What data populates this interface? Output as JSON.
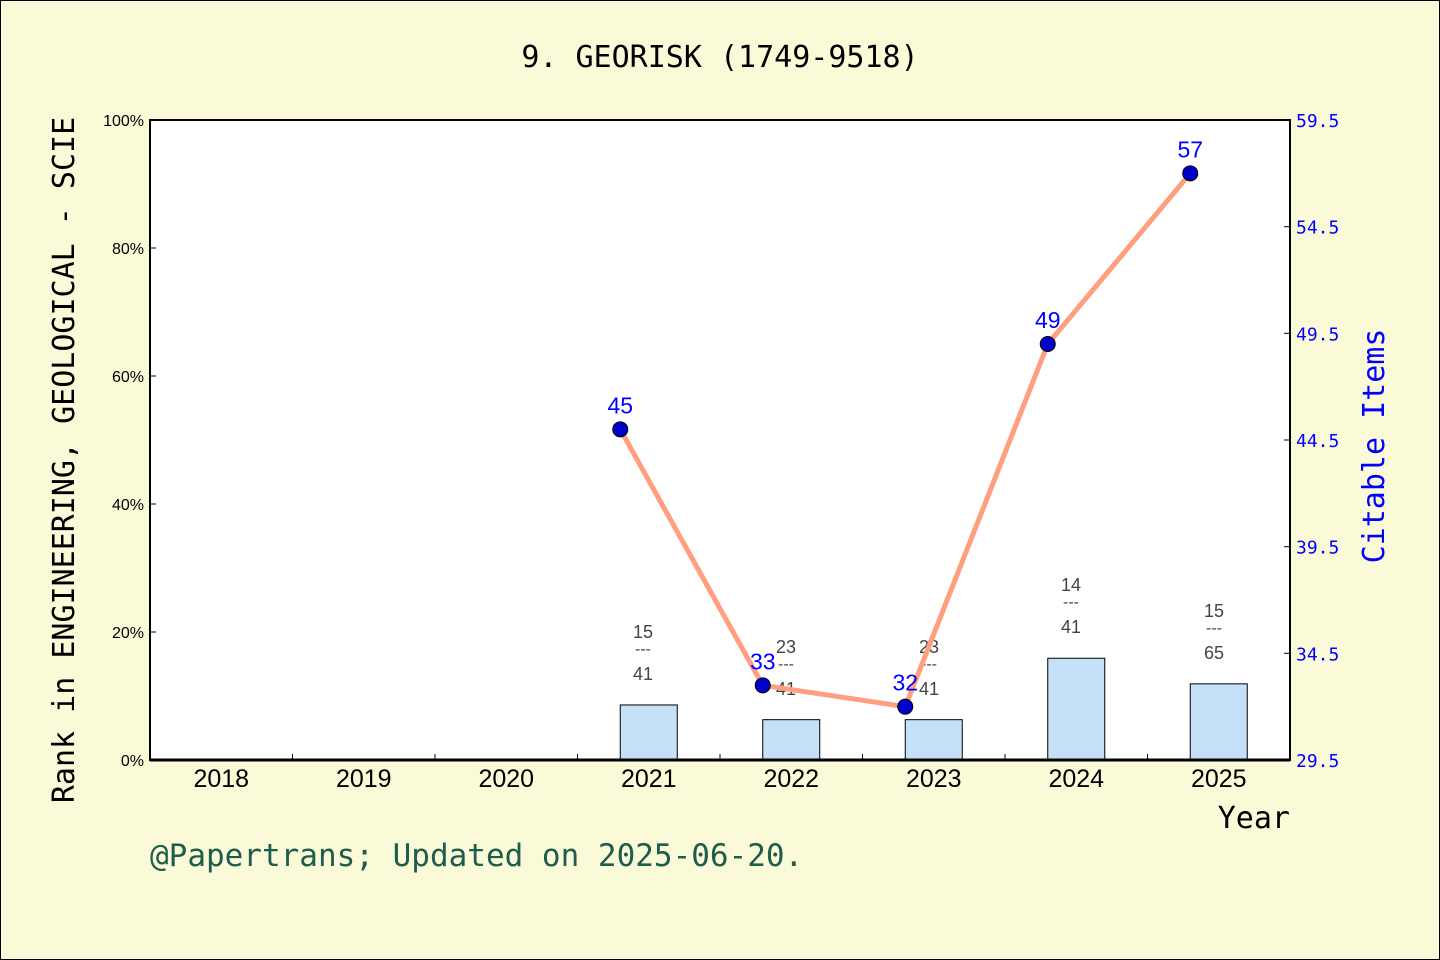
{
  "chart_data": {
    "type": "bar+line",
    "title": "9. GEORISK (1749-9518)",
    "xlabel": "Year",
    "ylabel_left": "Rank in ENGINEERING, GEOLOGICAL - SCIE",
    "ylabel_right": "Citable Items",
    "categories": [
      "2018",
      "2019",
      "2020",
      "2021",
      "2022",
      "2023",
      "2024",
      "2025"
    ],
    "left_axis": {
      "ylim": [
        0,
        100
      ],
      "ticks": [
        "0%",
        "20%",
        "40%",
        "60%",
        "80%",
        "100%"
      ],
      "tick_values": [
        0,
        20,
        40,
        60,
        80,
        100
      ]
    },
    "right_axis": {
      "ylim": [
        29.5,
        59.5
      ],
      "ticks": [
        "29.5",
        "34.5",
        "39.5",
        "44.5",
        "49.5",
        "54.5",
        "59.5"
      ],
      "tick_values": [
        29.5,
        34.5,
        39.5,
        44.5,
        49.5,
        54.5,
        59.5
      ]
    },
    "bars": [
      {
        "year": "2021",
        "value": 8.6,
        "rank": "15",
        "total": "41"
      },
      {
        "year": "2022",
        "value": 6.3,
        "rank": "23",
        "total": "41"
      },
      {
        "year": "2023",
        "value": 6.3,
        "rank": "23",
        "total": "41"
      },
      {
        "year": "2024",
        "value": 15.9,
        "rank": "14",
        "total": "41"
      },
      {
        "year": "2025",
        "value": 11.9,
        "rank": "15",
        "total": "65"
      }
    ],
    "line": [
      {
        "year": "2021",
        "value": 45
      },
      {
        "year": "2022",
        "value": 33
      },
      {
        "year": "2023",
        "value": 32
      },
      {
        "year": "2024",
        "value": 49
      },
      {
        "year": "2025",
        "value": 57
      }
    ],
    "colors": {
      "bar": "#C5E0F7",
      "line": "#FF9F7F",
      "marker": "#0000CC",
      "right_axis": "#0000FF",
      "footer": "#1E5C4C",
      "background": "#FAFAD9"
    }
  },
  "footer": "@Papertrans; Updated on 2025-06-20.",
  "fraction_sep": "---"
}
